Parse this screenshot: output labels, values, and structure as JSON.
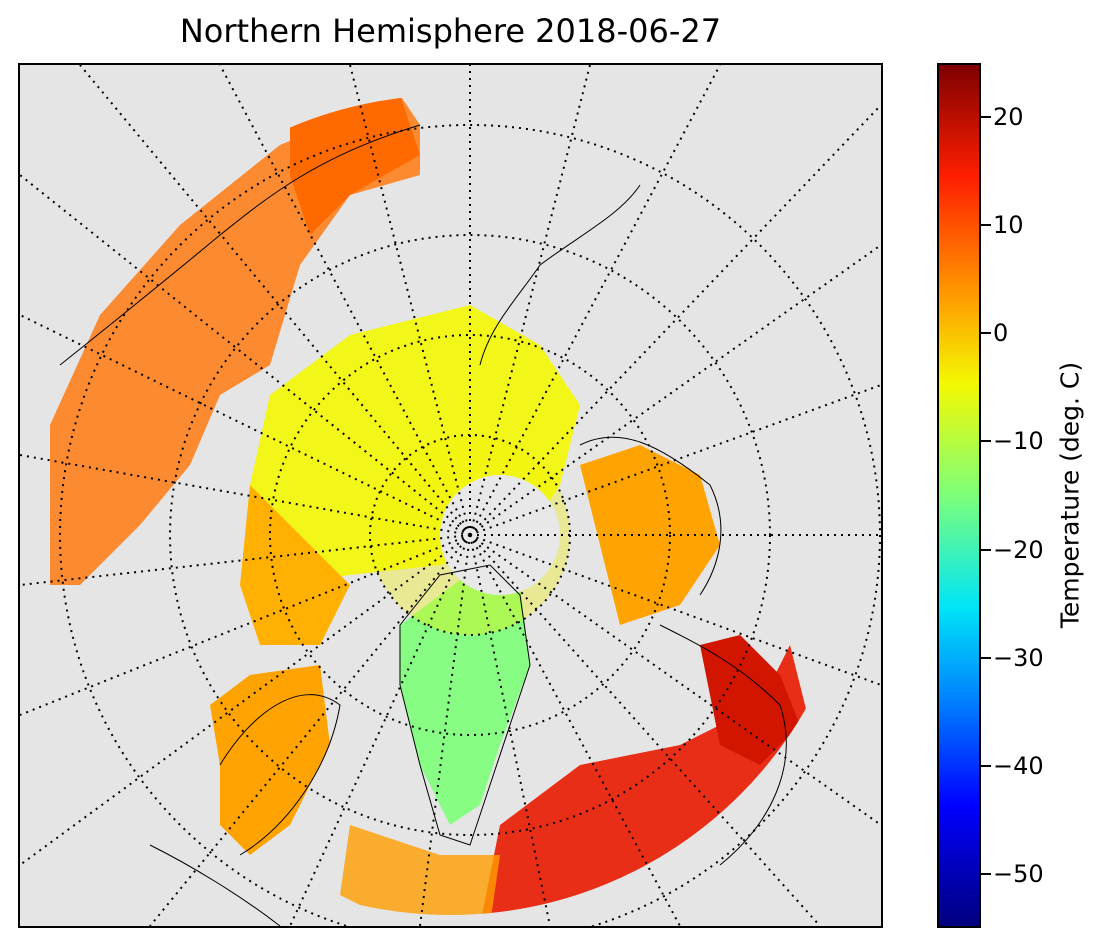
{
  "title": "Northern Hemisphere 2018-06-27",
  "map": {
    "projection": "north-polar-stereographic",
    "background_color": "#e5e5e5",
    "graticule_style": "dotted"
  },
  "colorbar": {
    "label": "Temperature (deg. C)",
    "min": -55,
    "max": 25,
    "colormap": "jet",
    "ticks": [
      {
        "value": 20,
        "label": "20"
      },
      {
        "value": 10,
        "label": "10"
      },
      {
        "value": 0,
        "label": "0"
      },
      {
        "value": -10,
        "label": "−10"
      },
      {
        "value": -20,
        "label": "−20"
      },
      {
        "value": -30,
        "label": "−30"
      },
      {
        "value": -40,
        "label": "−40"
      },
      {
        "value": -50,
        "label": "−50"
      }
    ]
  },
  "colors": {
    "cold": "#7cff79",
    "cool": "#f4f802",
    "mild": "#ffae00",
    "warm": "#ff6a00",
    "hot": "#e81a00"
  }
}
